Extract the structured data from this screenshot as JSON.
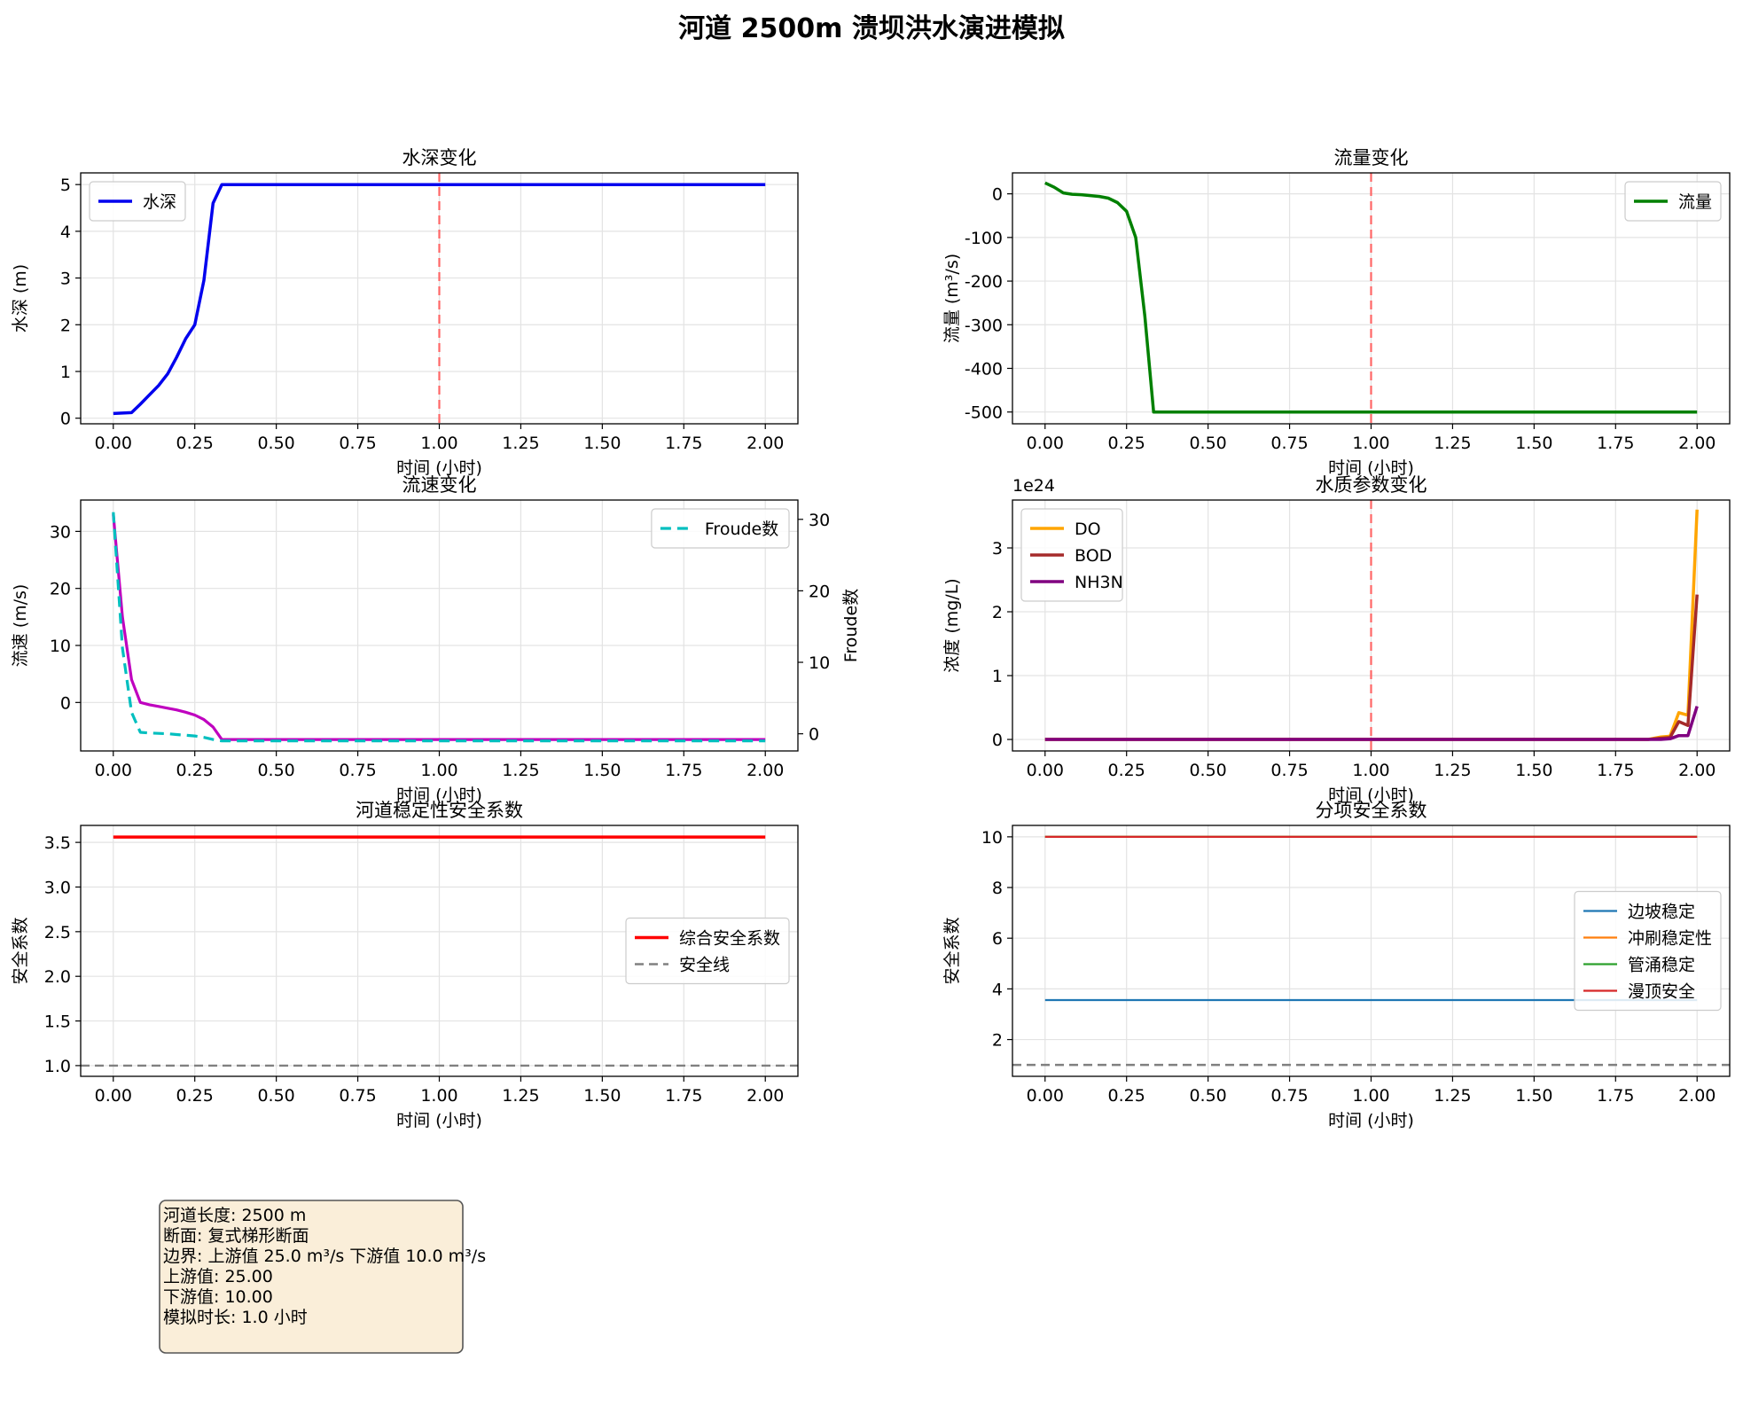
{
  "figure": {
    "title": "河道 2500m 溃坝洪水演进模拟"
  },
  "chart_data": [
    {
      "id": "p1",
      "type": "line",
      "title": "水深变化",
      "xlabel": "时间 (小时)",
      "ylabel": "水深 (m)",
      "xlim": [
        -0.1,
        2.1
      ],
      "ylim": [
        -0.12,
        5.25
      ],
      "xticks": [
        0,
        0.25,
        0.5,
        0.75,
        1.0,
        1.25,
        1.5,
        1.75,
        2.0
      ],
      "yticks": [
        0,
        1,
        2,
        3,
        4,
        5
      ],
      "grid": true,
      "legend_position": "upper left",
      "vlines": [
        {
          "x": 1.0,
          "color": "#ff6666"
        }
      ],
      "series": [
        {
          "name": "水深",
          "color": "#0000ee",
          "width": 3.5,
          "x": [
            0,
            0.056,
            0.083,
            0.111,
            0.139,
            0.167,
            0.194,
            0.222,
            0.25,
            0.278,
            0.306,
            0.333,
            0.5,
            1.0,
            1.5,
            2.0
          ],
          "y": [
            0.1,
            0.12,
            0.3,
            0.5,
            0.7,
            0.95,
            1.3,
            1.7,
            2.0,
            2.95,
            4.6,
            5.0,
            5.0,
            5.0,
            5.0,
            5.0
          ]
        }
      ]
    },
    {
      "id": "p2",
      "type": "line",
      "title": "流量变化",
      "xlabel": "时间 (小时)",
      "ylabel": "流量 (m³/s)",
      "xlim": [
        -0.1,
        2.1
      ],
      "ylim": [
        -527,
        48
      ],
      "xticks": [
        0,
        0.25,
        0.5,
        0.75,
        1.0,
        1.25,
        1.5,
        1.75,
        2.0
      ],
      "yticks": [
        0,
        -100,
        -200,
        -300,
        -400,
        -500
      ],
      "grid": true,
      "legend_position": "upper right",
      "vlines": [
        {
          "x": 1.0,
          "color": "#ff6666"
        }
      ],
      "series": [
        {
          "name": "流量",
          "color": "#008000",
          "width": 3.5,
          "x": [
            0,
            0.028,
            0.056,
            0.083,
            0.111,
            0.139,
            0.167,
            0.194,
            0.222,
            0.25,
            0.278,
            0.306,
            0.333,
            0.5,
            1.0,
            1.5,
            2.0
          ],
          "y": [
            25,
            15,
            2,
            -1,
            -2,
            -4,
            -6,
            -10,
            -20,
            -40,
            -100,
            -280,
            -500,
            -500,
            -500,
            -500,
            -500
          ]
        }
      ]
    },
    {
      "id": "p3",
      "type": "line",
      "title": "流速变化",
      "xlabel": "时间 (小时)",
      "ylabel": "流速 (m/s)",
      "ylabel_right": "Froude数",
      "xlim": [
        -0.1,
        2.1
      ],
      "ylim": [
        -8.5,
        35.5
      ],
      "ylim_right": [
        -2.4,
        32.7
      ],
      "xticks": [
        0,
        0.25,
        0.5,
        0.75,
        1.0,
        1.25,
        1.5,
        1.75,
        2.0
      ],
      "yticks": [
        0,
        10,
        20,
        30
      ],
      "yticks_right": [
        0,
        10,
        20,
        30
      ],
      "grid": true,
      "legend_position": "upper right",
      "series": [
        {
          "name": "",
          "color": "#bf00bf",
          "width": 3.2,
          "axis": "left",
          "x": [
            0,
            0.028,
            0.056,
            0.083,
            0.111,
            0.139,
            0.167,
            0.194,
            0.222,
            0.25,
            0.278,
            0.306,
            0.333,
            0.5,
            1.0,
            1.5,
            2.0
          ],
          "y": [
            33,
            15,
            4,
            0,
            -0.4,
            -0.7,
            -1.0,
            -1.3,
            -1.7,
            -2.2,
            -3.0,
            -4.3,
            -6.5,
            -6.5,
            -6.5,
            -6.5,
            -6.5
          ]
        },
        {
          "name": "Froude数",
          "color": "#00bfbf",
          "width": 3.2,
          "dash": "12,7",
          "axis": "right",
          "x": [
            0,
            0.028,
            0.056,
            0.083,
            0.111,
            0.139,
            0.167,
            0.194,
            0.222,
            0.25,
            0.278,
            0.306,
            0.333,
            0.5,
            1.0,
            1.5,
            2.0
          ],
          "y": [
            31,
            12,
            3,
            0.2,
            0.1,
            0.05,
            0.0,
            -0.1,
            -0.2,
            -0.3,
            -0.5,
            -0.8,
            -1.0,
            -1.0,
            -1.0,
            -1.0,
            -1.0
          ]
        }
      ]
    },
    {
      "id": "p4",
      "type": "line",
      "title": "水质参数变化",
      "xlabel": "时间 (小时)",
      "ylabel": "浓度 (mg/L)",
      "y_offset_text": "1e24",
      "xlim": [
        -0.1,
        2.1
      ],
      "ylim": [
        -0.18,
        3.75
      ],
      "xticks": [
        0,
        0.25,
        0.5,
        0.75,
        1.0,
        1.25,
        1.5,
        1.75,
        2.0
      ],
      "yticks": [
        0,
        1,
        2,
        3
      ],
      "grid": true,
      "legend_position": "upper left",
      "vlines": [
        {
          "x": 1.0,
          "color": "#ff6666"
        }
      ],
      "series": [
        {
          "name": "DO",
          "color": "#ffa500",
          "width": 3.5,
          "x": [
            0,
            0.5,
            1.0,
            1.5,
            1.85,
            1.889,
            1.917,
            1.944,
            1.972,
            2.0
          ],
          "y": [
            0,
            0,
            0,
            0,
            0,
            0.04,
            0.05,
            0.42,
            0.38,
            3.6
          ]
        },
        {
          "name": "BOD",
          "color": "#a52a2a",
          "width": 3.5,
          "x": [
            0,
            0.5,
            1.0,
            1.5,
            1.85,
            1.889,
            1.917,
            1.944,
            1.972,
            2.0
          ],
          "y": [
            0,
            0,
            0,
            0,
            0,
            0.02,
            0.03,
            0.28,
            0.22,
            2.27
          ]
        },
        {
          "name": "NH3N",
          "color": "#800080",
          "width": 3.5,
          "x": [
            0,
            0.5,
            1.0,
            1.5,
            1.85,
            1.889,
            1.917,
            1.944,
            1.972,
            2.0
          ],
          "y": [
            0,
            0,
            0,
            0,
            0,
            0.0,
            0.01,
            0.06,
            0.06,
            0.52
          ]
        }
      ]
    },
    {
      "id": "p5",
      "type": "line",
      "title": "河道稳定性安全系数",
      "xlabel": "时间 (小时)",
      "ylabel": "安全系数",
      "xlim": [
        -0.1,
        2.1
      ],
      "ylim": [
        0.88,
        3.69
      ],
      "xticks": [
        0,
        0.25,
        0.5,
        0.75,
        1.0,
        1.25,
        1.5,
        1.75,
        2.0
      ],
      "yticks": [
        1.0,
        1.5,
        2.0,
        2.5,
        3.0,
        3.5
      ],
      "ytick_labels": [
        "1.0",
        "1.5",
        "2.0",
        "2.5",
        "3.0",
        "3.5"
      ],
      "grid": true,
      "legend_position": "center right",
      "hlines": [
        {
          "y": 1.0,
          "color": "#808080",
          "dash": "10,6",
          "name": "安全线"
        }
      ],
      "series": [
        {
          "name": "综合安全系数",
          "color": "#ff0000",
          "width": 3.5,
          "x": [
            0,
            2.0
          ],
          "y": [
            3.56,
            3.56
          ]
        }
      ]
    },
    {
      "id": "p6",
      "type": "line",
      "title": "分项安全系数",
      "xlabel": "时间 (小时)",
      "ylabel": "安全系数",
      "xlim": [
        -0.1,
        2.1
      ],
      "ylim": [
        0.55,
        10.45
      ],
      "xticks": [
        0,
        0.25,
        0.5,
        0.75,
        1.0,
        1.25,
        1.5,
        1.75,
        2.0
      ],
      "yticks": [
        2,
        4,
        6,
        8,
        10
      ],
      "grid": true,
      "legend_position": "center right",
      "hlines": [
        {
          "y": 1.0,
          "color": "#808080",
          "dash": "10,6"
        }
      ],
      "series": [
        {
          "name": "边坡稳定",
          "color": "#1f77b4",
          "width": 2.2,
          "x": [
            0,
            2.0
          ],
          "y": [
            3.56,
            3.56
          ]
        },
        {
          "name": "冲刷稳定性",
          "color": "#ff7f0e",
          "width": 2.2,
          "x": [
            0,
            2.0
          ],
          "y": [
            10,
            10
          ]
        },
        {
          "name": "管涌稳定",
          "color": "#2ca02c",
          "width": 2.2,
          "x": [
            0,
            2.0
          ],
          "y": [
            10,
            10
          ]
        },
        {
          "name": "漫顶安全",
          "color": "#d62728",
          "width": 2.2,
          "x": [
            0,
            2.0
          ],
          "y": [
            10,
            10
          ]
        }
      ]
    }
  ],
  "info_box": {
    "lines": [
      "河道长度: 2500 m",
      "断面: 复式梯形断面",
      "边界: 上游值 25.0 m³/s 下游值 10.0 m³/s",
      "上游值: 25.00",
      "下游值: 10.00",
      "模拟时长: 1.0 小时"
    ]
  }
}
